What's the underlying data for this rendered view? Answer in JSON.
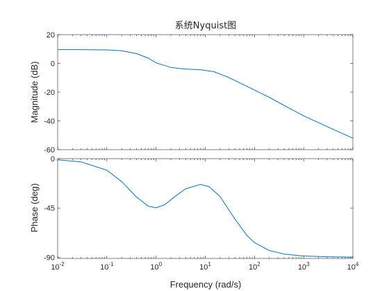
{
  "chart_data": {
    "type": "line",
    "title": "系统Nyquist图",
    "xlabel": "Frequency  (rad/s)",
    "xscale": "log",
    "xlim": [
      0.01,
      10000
    ],
    "xticks": [
      {
        "value": 0.01,
        "base": "10",
        "exp": "-2"
      },
      {
        "value": 0.1,
        "base": "10",
        "exp": "-1"
      },
      {
        "value": 1,
        "base": "10",
        "exp": "0"
      },
      {
        "value": 10,
        "base": "10",
        "exp": "1"
      },
      {
        "value": 100,
        "base": "10",
        "exp": "2"
      },
      {
        "value": 1000,
        "base": "10",
        "exp": "3"
      },
      {
        "value": 10000,
        "base": "10",
        "exp": "4"
      }
    ],
    "series_color": "#0072bd",
    "panels": [
      {
        "name": "magnitude",
        "ylabel": "Magnitude (dB)",
        "ylim": [
          -60,
          20
        ],
        "yticks": [
          20,
          0,
          -20,
          -40,
          -60
        ],
        "x": [
          0.01,
          0.03,
          0.1,
          0.2,
          0.4,
          0.7,
          1,
          2,
          4,
          8,
          15,
          30,
          60,
          100,
          200,
          500,
          1000,
          3000,
          10000
        ],
        "y": [
          9.6,
          9.6,
          9.4,
          8.8,
          6.8,
          3.6,
          0.4,
          -2.8,
          -4.0,
          -4.4,
          -5.8,
          -9.8,
          -14.8,
          -18.5,
          -23.6,
          -31.0,
          -36.5,
          -44.0,
          -52.0
        ]
      },
      {
        "name": "phase",
        "ylabel": "Phase (deg)",
        "ylim": [
          -91,
          0
        ],
        "yticks": [
          0,
          -45,
          -90
        ],
        "x": [
          0.01,
          0.03,
          0.1,
          0.2,
          0.4,
          0.7,
          1,
          1.5,
          2.5,
          4,
          8,
          12,
          20,
          40,
          70,
          100,
          200,
          400,
          1000,
          3000,
          10000
        ],
        "y": [
          -1.0,
          -3.0,
          -10.5,
          -21.0,
          -35.0,
          -43.5,
          -44.8,
          -42.0,
          -34.0,
          -27.5,
          -23.5,
          -25.5,
          -34.5,
          -55.0,
          -70.0,
          -76.5,
          -83.8,
          -87.0,
          -88.8,
          -89.5,
          -89.8
        ]
      }
    ]
  }
}
